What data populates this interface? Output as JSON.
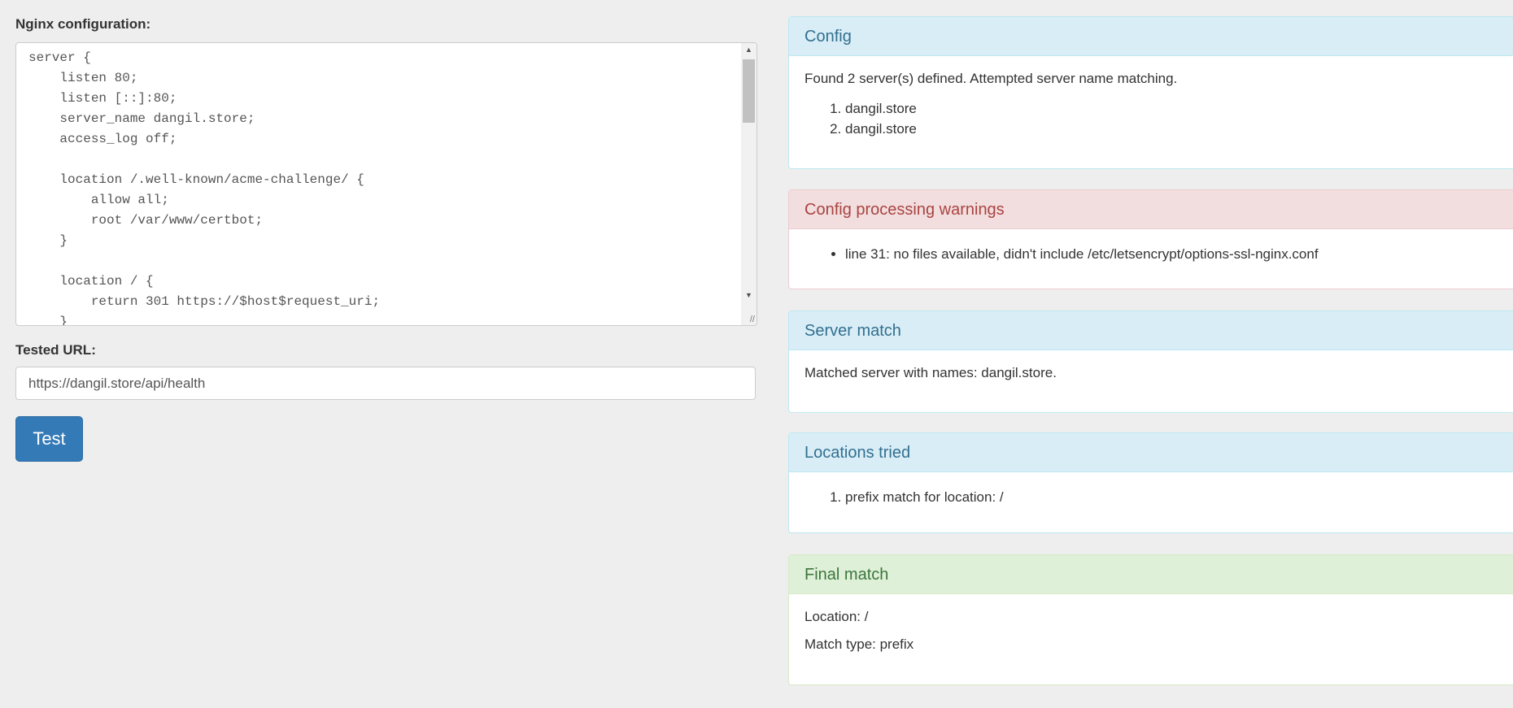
{
  "form": {
    "config_label": "Nginx configuration:",
    "config_text": "server {\n    listen 80;\n    listen [::]:80;\n    server_name dangil.store;\n    access_log off;\n\n    location /.well-known/acme-challenge/ {\n        allow all;\n        root /var/www/certbot;\n    }\n\n    location / {\n        return 301 https://$host$request_uri;\n    }",
    "url_label": "Tested URL:",
    "url_value": "https://dangil.store/api/health",
    "test_button": "Test"
  },
  "panels": {
    "config": {
      "title": "Config",
      "text": "Found 2 server(s) defined. Attempted server name matching.",
      "servers": [
        "dangil.store",
        "dangil.store"
      ]
    },
    "warnings": {
      "title": "Config processing warnings",
      "items": [
        "line 31: no files available, didn't include /etc/letsencrypt/options-ssl-nginx.conf"
      ]
    },
    "server_match": {
      "title": "Server match",
      "text": "Matched server with names: dangil.store."
    },
    "locations": {
      "title": "Locations tried",
      "items": [
        "prefix match for location: /"
      ]
    },
    "final": {
      "title": "Final match",
      "location": "Location: /",
      "match_type": "Match type: prefix"
    }
  },
  "colors": {
    "info_header": "#d9edf7",
    "danger_header": "#f2dede",
    "success_header": "#dff0d8",
    "primary_button": "#337ab7"
  }
}
